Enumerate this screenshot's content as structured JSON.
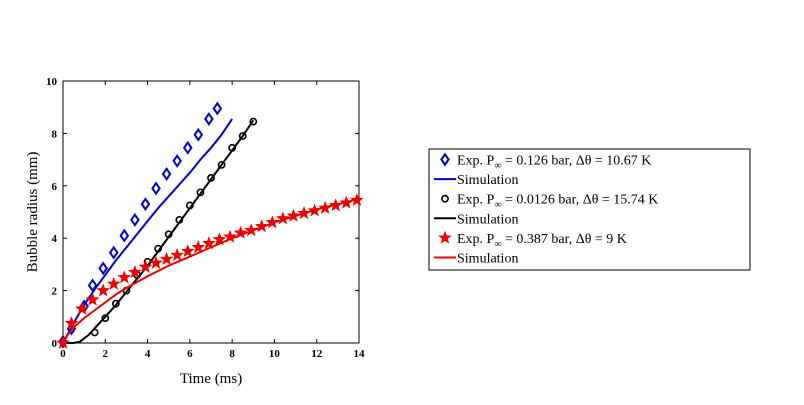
{
  "chart_data": {
    "type": "scatter",
    "xlabel": "Time (ms)",
    "ylabel": "Bubble radius (mm)",
    "xlim": [
      0,
      14
    ],
    "ylim": [
      0,
      10
    ],
    "xticks": [
      0,
      2,
      4,
      6,
      8,
      10,
      12,
      14
    ],
    "yticks": [
      0,
      2,
      4,
      6,
      8,
      10
    ],
    "grid": false,
    "legend_position": "right",
    "series": [
      {
        "name": "Exp. P∞ = 0.126 bar, Δθ = 10.67 K",
        "label_parts": {
          "prefix": "Exp. P",
          "sub": "∞",
          "rest": " = 0.126 bar, Δθ = 10.67 K"
        },
        "kind": "markers",
        "marker": "diamond",
        "color": "#0000cc",
        "x": [
          0.0,
          0.4,
          1.0,
          1.4,
          1.9,
          2.4,
          2.9,
          3.4,
          3.9,
          4.4,
          4.9,
          5.4,
          5.9,
          6.4,
          6.9,
          7.3
        ],
        "y": [
          0.05,
          0.55,
          1.4,
          2.2,
          2.85,
          3.45,
          4.1,
          4.7,
          5.3,
          5.9,
          6.45,
          6.95,
          7.45,
          7.95,
          8.55,
          8.95
        ]
      },
      {
        "name": "Simulation",
        "kind": "line",
        "color": "#0000cc",
        "x": [
          0.0,
          0.3,
          0.6,
          1.0,
          1.5,
          2.0,
          2.5,
          3.0,
          3.5,
          4.0,
          4.5,
          5.0,
          5.5,
          6.0,
          6.5,
          7.0,
          7.5,
          8.0
        ],
        "y": [
          0.0,
          0.45,
          0.9,
          1.45,
          2.05,
          2.6,
          3.15,
          3.65,
          4.15,
          4.65,
          5.15,
          5.6,
          6.05,
          6.5,
          7.0,
          7.45,
          7.95,
          8.55
        ]
      },
      {
        "name": "Exp. P∞ = 0.0126 bar, Δθ = 15.74 K",
        "label_parts": {
          "prefix": "Exp. P",
          "sub": "∞",
          "rest": " = 0.0126 bar, Δθ = 15.74 K"
        },
        "kind": "markers",
        "marker": "circle",
        "color": "#000000",
        "x": [
          1.5,
          2.0,
          2.5,
          3.0,
          3.5,
          4.0,
          4.5,
          5.0,
          5.5,
          6.0,
          6.5,
          7.0,
          7.5,
          8.0,
          8.5,
          9.0
        ],
        "y": [
          0.4,
          0.95,
          1.5,
          2.0,
          2.6,
          3.1,
          3.6,
          4.15,
          4.7,
          5.25,
          5.75,
          6.3,
          6.8,
          7.45,
          7.9,
          8.45
        ]
      },
      {
        "name": "Simulation",
        "kind": "line",
        "color": "#000000",
        "x": [
          0.0,
          0.5,
          0.8,
          1.2,
          1.6,
          2.0,
          2.5,
          3.0,
          3.5,
          4.0,
          4.5,
          5.0,
          5.5,
          6.0,
          6.5,
          7.0,
          7.5,
          8.0,
          8.5,
          9.0
        ],
        "y": [
          0.0,
          0.0,
          0.05,
          0.3,
          0.65,
          1.0,
          1.45,
          1.95,
          2.45,
          2.95,
          3.5,
          4.05,
          4.6,
          5.15,
          5.7,
          6.25,
          6.8,
          7.35,
          7.9,
          8.5
        ]
      },
      {
        "name": "Exp. P∞ = 0.387 bar, Δθ = 9 K",
        "label_parts": {
          "prefix": "Exp. P",
          "sub": "∞",
          "rest": " = 0.387 bar, Δθ = 9 K"
        },
        "kind": "markers",
        "marker": "star",
        "color": "#ee0000",
        "x": [
          0.0,
          0.4,
          0.9,
          1.4,
          1.9,
          2.4,
          2.9,
          3.4,
          3.9,
          4.4,
          4.9,
          5.4,
          5.9,
          6.4,
          6.9,
          7.4,
          7.9,
          8.4,
          8.9,
          9.4,
          9.9,
          10.4,
          10.9,
          11.4,
          11.9,
          12.4,
          12.9,
          13.4,
          13.9
        ],
        "y": [
          0.0,
          0.75,
          1.3,
          1.65,
          2.0,
          2.25,
          2.5,
          2.7,
          2.9,
          3.05,
          3.2,
          3.35,
          3.5,
          3.65,
          3.8,
          3.95,
          4.05,
          4.2,
          4.3,
          4.45,
          4.6,
          4.75,
          4.85,
          4.95,
          5.05,
          5.15,
          5.25,
          5.35,
          5.45
        ]
      },
      {
        "name": "Simulation",
        "kind": "line",
        "color": "#ee0000",
        "x": [
          0.0,
          0.25,
          0.5,
          1.0,
          1.5,
          2.0,
          2.5,
          3.0,
          4.0,
          5.0,
          6.0,
          7.0,
          8.0,
          9.0,
          10.0,
          11.0,
          12.0,
          13.0,
          14.0
        ],
        "y": [
          0.0,
          0.35,
          0.6,
          0.95,
          1.25,
          1.55,
          1.85,
          2.1,
          2.55,
          2.95,
          3.3,
          3.65,
          4.0,
          4.3,
          4.6,
          4.85,
          5.1,
          5.3,
          5.5
        ]
      }
    ]
  }
}
